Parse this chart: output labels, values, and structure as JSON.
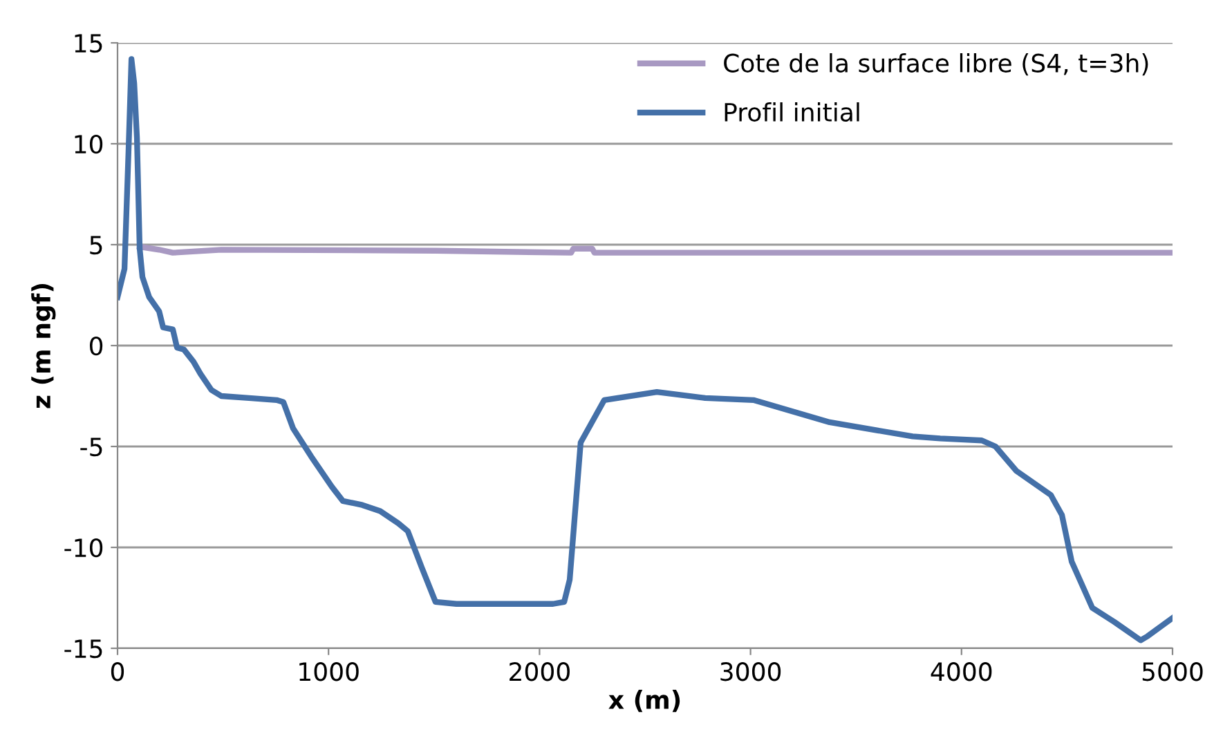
{
  "chart_data": {
    "type": "line",
    "xlabel": "x (m)",
    "ylabel": "z (m ngf)",
    "xlim": [
      0,
      5000
    ],
    "xticks": [
      0,
      1000,
      2000,
      3000,
      4000,
      5000
    ],
    "ylim": [
      -15,
      15
    ],
    "yticks": [
      -15,
      -10,
      -5,
      0,
      5,
      10,
      15
    ],
    "grid": "y",
    "legend": "top right",
    "marker": "none",
    "line_style": "solid",
    "series": [
      {
        "name": "Cote de la surface libre (S4, t=3h)",
        "color": "#a899c2",
        "x": [
          105,
          197,
          262,
          492,
          1507,
          2150,
          2160,
          2250,
          2260,
          5000
        ],
        "values": [
          4.9,
          4.75,
          4.6,
          4.75,
          4.7,
          4.6,
          4.8,
          4.8,
          4.6,
          4.6
        ]
      },
      {
        "name": "Profil initial",
        "color": "#4470a8",
        "x": [
          0,
          33,
          52,
          66,
          79,
          92,
          105,
          118,
          150,
          197,
          216,
          262,
          282,
          315,
          360,
          393,
          445,
          492,
          623,
          754,
          786,
          832,
          918,
          1016,
          1068,
          1160,
          1245,
          1330,
          1376,
          1442,
          1507,
          1606,
          2064,
          2117,
          2143,
          2195,
          2307,
          2556,
          2785,
          3014,
          3375,
          3768,
          3899,
          4096,
          4161,
          4259,
          4423,
          4476,
          4522,
          4620,
          4725,
          4849,
          4882,
          5000
        ],
        "values": [
          2.4,
          3.8,
          9.6,
          14.2,
          13,
          10.3,
          4.8,
          3.4,
          2.4,
          1.7,
          0.9,
          0.8,
          -0.1,
          -0.2,
          -0.8,
          -1.4,
          -2.2,
          -2.5,
          -2.6,
          -2.7,
          -2.8,
          -4.1,
          -5.5,
          -7.0,
          -7.7,
          -7.9,
          -8.2,
          -8.8,
          -9.2,
          -11,
          -12.7,
          -12.8,
          -12.8,
          -12.7,
          -11.6,
          -4.8,
          -2.7,
          -2.3,
          -2.6,
          -2.7,
          -3.8,
          -4.5,
          -4.6,
          -4.7,
          -5.0,
          -6.2,
          -7.4,
          -8.4,
          -10.7,
          -13.0,
          -13.7,
          -14.6,
          -14.4,
          -13.5
        ]
      }
    ]
  }
}
